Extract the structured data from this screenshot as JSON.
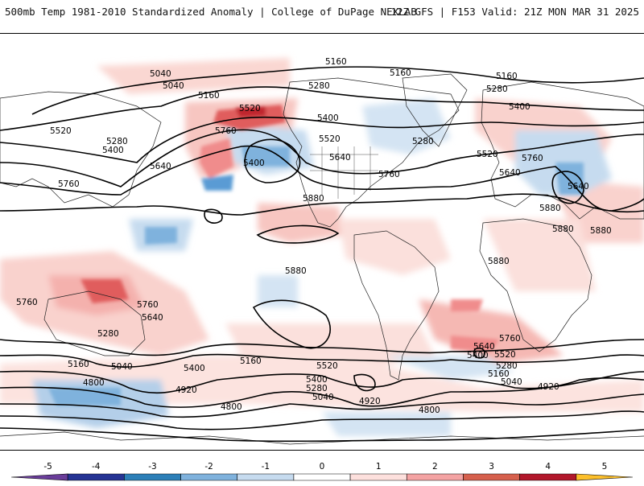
{
  "header": {
    "title_left": "500mb Temp 1981-2010 Standardized Anomaly | College of DuPage NEXLAB",
    "title_right": "12Z GFS | F153 Valid: 21Z MON MAR 31 2025"
  },
  "map": {
    "contour_labels": [
      "5160",
      "5040",
      "5040",
      "5160",
      "5280",
      "5520",
      "5160",
      "5160",
      "5280",
      "5400",
      "5760",
      "5520",
      "5400",
      "5520",
      "5280",
      "5400",
      "5640",
      "5520",
      "5280",
      "5400",
      "5640",
      "5760",
      "5760",
      "5640",
      "5880",
      "5880",
      "5880",
      "5880",
      "5880",
      "5760",
      "5640",
      "5760",
      "5280",
      "5040",
      "5160",
      "4800",
      "5400",
      "5160",
      "5640",
      "5760",
      "5520",
      "5400",
      "5280",
      "5040",
      "4920",
      "4800",
      "4920",
      "5760",
      "5640",
      "5400",
      "5520",
      "5280",
      "5160",
      "5040",
      "4920",
      "4800",
      "5880"
    ]
  },
  "colorbar": {
    "ticks": [
      "-5",
      "-4",
      "-3",
      "-2",
      "-1",
      "0",
      "1",
      "2",
      "3",
      "4",
      "5"
    ],
    "colors": [
      "#6a3d9a",
      "#253494",
      "#2c7fb8",
      "#7fb2dd",
      "#c6dbef",
      "#ffffff",
      "#fde0dd",
      "#f4a3a3",
      "#d6604d",
      "#b2182b",
      "#fcbf2a"
    ]
  }
}
